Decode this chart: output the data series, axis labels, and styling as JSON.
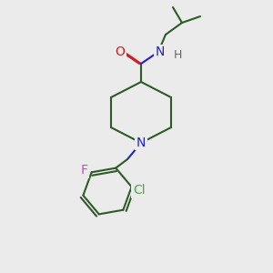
{
  "background_color": "#ebebeb",
  "bond_color": "#2d5a27",
  "atom_colors": {
    "N": "#2020cc",
    "O": "#cc2020",
    "Cl": "#44aa44",
    "F": "#cc44cc",
    "H": "#666666"
  },
  "figsize": [
    3.0,
    3.0
  ],
  "dpi": 100,
  "lw": 1.5
}
